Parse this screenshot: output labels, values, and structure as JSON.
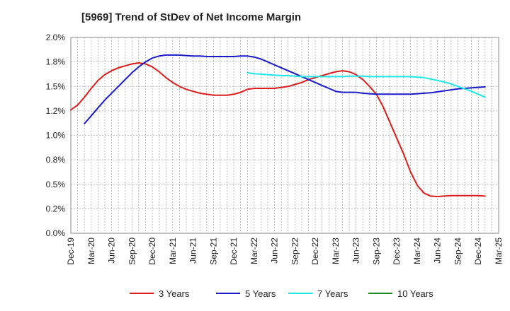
{
  "chart_data": {
    "type": "line",
    "title": "[5969]  Trend of StDev of Net Income Margin",
    "xlabel": "",
    "ylabel": "",
    "x_ticks": [
      "Dec-19",
      "Mar-20",
      "Jun-20",
      "Sep-20",
      "Dec-20",
      "Mar-21",
      "Jun-21",
      "Sep-21",
      "Dec-21",
      "Mar-22",
      "Jun-22",
      "Sep-22",
      "Dec-22",
      "Mar-23",
      "Jun-23",
      "Sep-23",
      "Dec-23",
      "Mar-24",
      "Jun-24",
      "Sep-24",
      "Dec-24",
      "Mar-25"
    ],
    "y_ticks": [
      0,
      0.25,
      0.5,
      0.75,
      1.0,
      1.25,
      1.5,
      1.75,
      2.0
    ],
    "y_tick_labels": [
      "0.0%",
      "0.2%",
      "0.5%",
      "0.8%",
      "1.0%",
      "1.2%",
      "1.5%",
      "1.8%",
      "2.0%"
    ],
    "ylim": [
      0,
      2.0
    ],
    "grid": true,
    "legend_position": "bottom",
    "series": [
      {
        "name": "3 Years",
        "color": "#dd1c1c",
        "values": [
          [
            0,
            1.26
          ],
          [
            1,
            1.31
          ],
          [
            2,
            1.39
          ],
          [
            3,
            1.48
          ],
          [
            4,
            1.56
          ],
          [
            5,
            1.62
          ],
          [
            6,
            1.66
          ],
          [
            7,
            1.69
          ],
          [
            8,
            1.71
          ],
          [
            9,
            1.73
          ],
          [
            10,
            1.74
          ],
          [
            11,
            1.73
          ],
          [
            12,
            1.7
          ],
          [
            13,
            1.65
          ],
          [
            14,
            1.59
          ],
          [
            15,
            1.54
          ],
          [
            16,
            1.5
          ],
          [
            17,
            1.47
          ],
          [
            18,
            1.45
          ],
          [
            19,
            1.43
          ],
          [
            20,
            1.42
          ],
          [
            21,
            1.41
          ],
          [
            22,
            1.41
          ],
          [
            23,
            1.41
          ],
          [
            24,
            1.42
          ],
          [
            25,
            1.44
          ],
          [
            26,
            1.47
          ],
          [
            27,
            1.48
          ],
          [
            28,
            1.48
          ],
          [
            29,
            1.48
          ],
          [
            30,
            1.48
          ],
          [
            31,
            1.49
          ],
          [
            32,
            1.5
          ],
          [
            33,
            1.52
          ],
          [
            34,
            1.54
          ],
          [
            35,
            1.57
          ],
          [
            36,
            1.59
          ],
          [
            37,
            1.61
          ],
          [
            38,
            1.63
          ],
          [
            39,
            1.65
          ],
          [
            40,
            1.66
          ],
          [
            41,
            1.65
          ],
          [
            42,
            1.62
          ],
          [
            43,
            1.57
          ],
          [
            44,
            1.5
          ],
          [
            45,
            1.42
          ],
          [
            46,
            1.29
          ],
          [
            47,
            1.13
          ],
          [
            48,
            0.97
          ],
          [
            49,
            0.81
          ],
          [
            50,
            0.63
          ],
          [
            51,
            0.49
          ],
          [
            52,
            0.41
          ],
          [
            53,
            0.38
          ],
          [
            54,
            0.375
          ],
          [
            55,
            0.38
          ],
          [
            56,
            0.385
          ],
          [
            57,
            0.385
          ],
          [
            58,
            0.385
          ],
          [
            59,
            0.385
          ],
          [
            60,
            0.385
          ],
          [
            61,
            0.38
          ]
        ]
      },
      {
        "name": "5 Years",
        "color": "#1a1acc",
        "values": [
          [
            2,
            1.12
          ],
          [
            3,
            1.2
          ],
          [
            4,
            1.28
          ],
          [
            5,
            1.36
          ],
          [
            6,
            1.43
          ],
          [
            7,
            1.5
          ],
          [
            8,
            1.57
          ],
          [
            9,
            1.64
          ],
          [
            10,
            1.7
          ],
          [
            11,
            1.75
          ],
          [
            12,
            1.79
          ],
          [
            13,
            1.81
          ],
          [
            14,
            1.82
          ],
          [
            15,
            1.82
          ],
          [
            16,
            1.82
          ],
          [
            17,
            1.815
          ],
          [
            18,
            1.81
          ],
          [
            19,
            1.81
          ],
          [
            20,
            1.805
          ],
          [
            21,
            1.805
          ],
          [
            22,
            1.805
          ],
          [
            23,
            1.805
          ],
          [
            24,
            1.805
          ],
          [
            25,
            1.81
          ],
          [
            26,
            1.81
          ],
          [
            27,
            1.8
          ],
          [
            28,
            1.78
          ],
          [
            29,
            1.75
          ],
          [
            30,
            1.72
          ],
          [
            31,
            1.69
          ],
          [
            32,
            1.66
          ],
          [
            33,
            1.63
          ],
          [
            34,
            1.6
          ],
          [
            35,
            1.57
          ],
          [
            36,
            1.54
          ],
          [
            37,
            1.51
          ],
          [
            38,
            1.48
          ],
          [
            39,
            1.45
          ],
          [
            40,
            1.44
          ],
          [
            41,
            1.44
          ],
          [
            42,
            1.44
          ],
          [
            43,
            1.43
          ],
          [
            44,
            1.425
          ],
          [
            45,
            1.42
          ],
          [
            46,
            1.42
          ],
          [
            47,
            1.42
          ],
          [
            48,
            1.42
          ],
          [
            49,
            1.42
          ],
          [
            50,
            1.42
          ],
          [
            51,
            1.425
          ],
          [
            52,
            1.43
          ],
          [
            53,
            1.435
          ],
          [
            54,
            1.445
          ],
          [
            55,
            1.455
          ],
          [
            56,
            1.465
          ],
          [
            57,
            1.475
          ],
          [
            58,
            1.48
          ],
          [
            59,
            1.485
          ],
          [
            60,
            1.49
          ],
          [
            61,
            1.495
          ]
        ]
      },
      {
        "name": "7 Years",
        "color": "#1de6e6",
        "values": [
          [
            26,
            1.64
          ],
          [
            27,
            1.63
          ],
          [
            28,
            1.625
          ],
          [
            29,
            1.62
          ],
          [
            30,
            1.615
          ],
          [
            31,
            1.61
          ],
          [
            32,
            1.61
          ],
          [
            33,
            1.605
          ],
          [
            34,
            1.6
          ],
          [
            35,
            1.6
          ],
          [
            36,
            1.6
          ],
          [
            37,
            1.6
          ],
          [
            38,
            1.6
          ],
          [
            39,
            1.6
          ],
          [
            40,
            1.6
          ],
          [
            41,
            1.605
          ],
          [
            42,
            1.605
          ],
          [
            43,
            1.605
          ],
          [
            44,
            1.6
          ],
          [
            45,
            1.6
          ],
          [
            46,
            1.6
          ],
          [
            47,
            1.6
          ],
          [
            48,
            1.6
          ],
          [
            49,
            1.6
          ],
          [
            50,
            1.6
          ],
          [
            51,
            1.595
          ],
          [
            52,
            1.59
          ],
          [
            53,
            1.575
          ],
          [
            54,
            1.56
          ],
          [
            55,
            1.545
          ],
          [
            56,
            1.525
          ],
          [
            57,
            1.5
          ],
          [
            58,
            1.475
          ],
          [
            59,
            1.45
          ],
          [
            60,
            1.42
          ],
          [
            61,
            1.39
          ]
        ]
      },
      {
        "name": "10 Years",
        "color": "#1c8c1c",
        "values": []
      }
    ]
  }
}
